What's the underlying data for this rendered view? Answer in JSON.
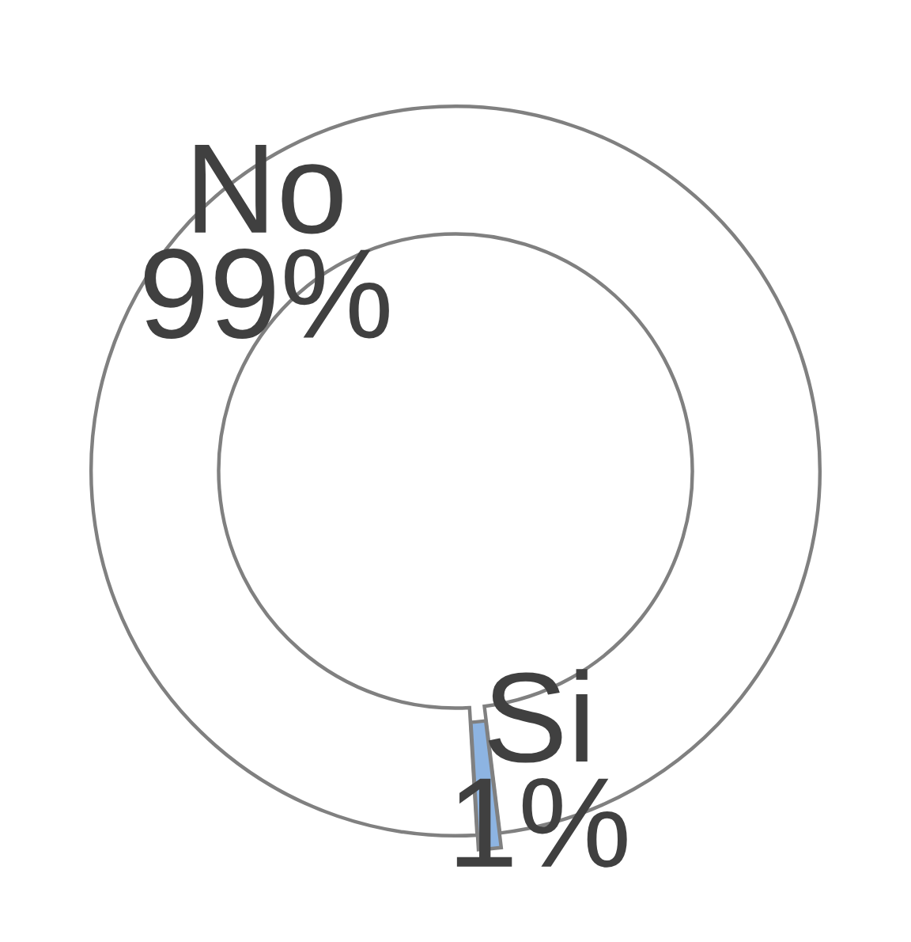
{
  "chart_data": {
    "type": "donut",
    "categories": [
      "No",
      "Si"
    ],
    "values": [
      99,
      1
    ],
    "colors": [
      "#ffffff",
      "#8db4e2"
    ],
    "value_labels": [
      "99%",
      "1%"
    ]
  }
}
